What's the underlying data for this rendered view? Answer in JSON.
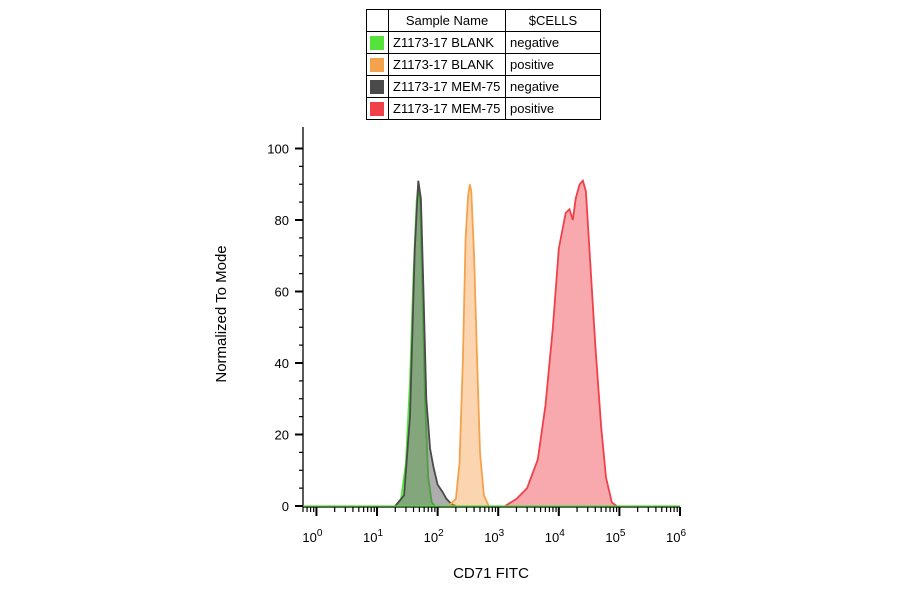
{
  "legend": {
    "headers": [
      "",
      "Sample Name",
      "$CELLS"
    ],
    "rows": [
      {
        "name": "Z1173-17 BLANK",
        "cells": "negative",
        "color": "#55e33b"
      },
      {
        "name": "Z1173-17 BLANK",
        "cells": "positive",
        "color": "#f5a24d"
      },
      {
        "name": "Z1173-17 MEM-75",
        "cells": "negative",
        "color": "#4a4a4a"
      },
      {
        "name": "Z1173-17 MEM-75",
        "cells": "positive",
        "color": "#f0414b"
      }
    ]
  },
  "chart_data": {
    "type": "area",
    "xlabel": "CD71 FITC",
    "ylabel": "Normalized To Mode",
    "xscale": "log",
    "xlim": [
      0.6,
      1000000
    ],
    "ylim": [
      0,
      100
    ],
    "x_ticks": [
      1,
      10,
      100,
      1000,
      10000,
      100000,
      1000000
    ],
    "x_tick_labels": [
      {
        "base": "10",
        "exp": "0"
      },
      {
        "base": "10",
        "exp": "1"
      },
      {
        "base": "10",
        "exp": "2"
      },
      {
        "base": "10",
        "exp": "3"
      },
      {
        "base": "10",
        "exp": "4"
      },
      {
        "base": "10",
        "exp": "5"
      },
      {
        "base": "10",
        "exp": "6"
      }
    ],
    "y_ticks": [
      0,
      20,
      40,
      60,
      80,
      100
    ],
    "y_tick_labels": [
      "0",
      "20",
      "40",
      "60",
      "80",
      "100"
    ],
    "series": [
      {
        "color": "#55e33b",
        "fill": "#55e33b",
        "points": [
          [
            20,
            0
          ],
          [
            25,
            2
          ],
          [
            30,
            12
          ],
          [
            35,
            35
          ],
          [
            40,
            65
          ],
          [
            45,
            85
          ],
          [
            48,
            90
          ],
          [
            52,
            84
          ],
          [
            56,
            60
          ],
          [
            62,
            30
          ],
          [
            70,
            8
          ],
          [
            80,
            1
          ],
          [
            90,
            0
          ]
        ]
      },
      {
        "color": "#4a4a4a",
        "fill": "#4a4a4a",
        "points": [
          [
            20,
            0
          ],
          [
            28,
            3
          ],
          [
            35,
            25
          ],
          [
            42,
            72
          ],
          [
            48,
            91
          ],
          [
            53,
            86
          ],
          [
            58,
            62
          ],
          [
            65,
            30
          ],
          [
            75,
            16
          ],
          [
            85,
            11
          ],
          [
            100,
            6
          ],
          [
            120,
            4
          ],
          [
            140,
            2
          ],
          [
            170,
            0.5
          ],
          [
            200,
            0
          ]
        ]
      },
      {
        "color": "#f5a24d",
        "fill": "#f5a24d",
        "points": [
          [
            150,
            0
          ],
          [
            200,
            2
          ],
          [
            230,
            12
          ],
          [
            260,
            40
          ],
          [
            290,
            75
          ],
          [
            320,
            87
          ],
          [
            340,
            90
          ],
          [
            360,
            88
          ],
          [
            400,
            70
          ],
          [
            450,
            40
          ],
          [
            500,
            15
          ],
          [
            580,
            3
          ],
          [
            700,
            0
          ]
        ]
      },
      {
        "color": "#f0414b",
        "fill": "#f0414b",
        "points": [
          [
            1300,
            0
          ],
          [
            2000,
            2
          ],
          [
            3000,
            5
          ],
          [
            4500,
            13
          ],
          [
            6000,
            28
          ],
          [
            8000,
            50
          ],
          [
            10000,
            72
          ],
          [
            13000,
            82
          ],
          [
            15000,
            83
          ],
          [
            17000,
            80
          ],
          [
            19000,
            86
          ],
          [
            22000,
            90
          ],
          [
            25000,
            91
          ],
          [
            28000,
            88
          ],
          [
            32000,
            72
          ],
          [
            40000,
            45
          ],
          [
            50000,
            22
          ],
          [
            60000,
            8
          ],
          [
            75000,
            1
          ],
          [
            90000,
            0
          ]
        ]
      }
    ]
  }
}
